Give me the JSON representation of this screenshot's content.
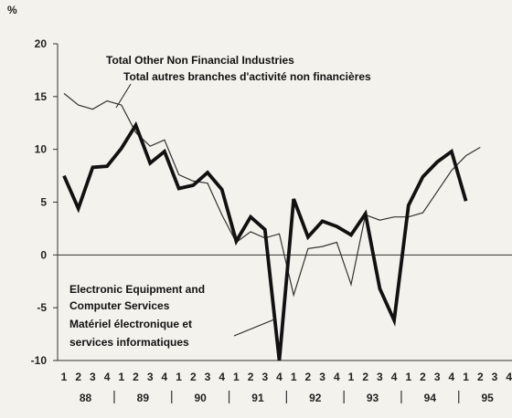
{
  "chart_data": {
    "type": "line",
    "unit_label": "%",
    "ylim": [
      -10,
      20
    ],
    "y_ticks": [
      -10,
      -5,
      0,
      5,
      10,
      15,
      20
    ],
    "quarter_labels": [
      "1",
      "2",
      "3",
      "4",
      "1",
      "2",
      "3",
      "4",
      "1",
      "2",
      "3",
      "4",
      "1",
      "2",
      "3",
      "4",
      "1",
      "2",
      "3",
      "4",
      "1",
      "2",
      "3",
      "4",
      "1",
      "2",
      "3",
      "4",
      "1",
      "2",
      "3",
      "4"
    ],
    "year_labels": [
      "88",
      "89",
      "90",
      "91",
      "92",
      "93",
      "94",
      "95"
    ],
    "series": [
      {
        "name": "Total Other Non Financial Industries",
        "name_fr": "Total autres branches d'activité non financières",
        "style": "thin",
        "color": "#333333",
        "values": [
          15.3,
          14.2,
          13.8,
          14.6,
          14.2,
          11.6,
          10.3,
          10.9,
          7.6,
          7.0,
          6.8,
          3.8,
          1.2,
          2.2,
          1.6,
          2.0,
          -3.8,
          0.6,
          0.8,
          1.2,
          -2.8,
          3.8,
          3.3,
          3.6,
          3.6,
          4.0,
          6.0,
          8.0,
          9.4,
          10.2
        ]
      },
      {
        "name": "Electronic Equipment and Computer Services",
        "name_fr": "Matériel électronique et services informatiques",
        "style": "thick",
        "color": "#111111",
        "values": [
          7.5,
          4.4,
          8.3,
          8.4,
          10.1,
          12.3,
          8.7,
          9.8,
          6.3,
          6.6,
          7.8,
          6.2,
          1.3,
          3.6,
          2.4,
          -10.0,
          5.3,
          1.7,
          3.2,
          2.7,
          1.9,
          3.9,
          -3.2,
          -6.2,
          4.7,
          7.4,
          8.8,
          9.8,
          5.1
        ]
      }
    ],
    "annotations": {
      "top": [
        "Total Other Non Financial Industries",
        "Total autres branches d'activité non financières"
      ],
      "bottom": [
        "Electronic Equipment and",
        "Computer Services",
        "Matériel électronique et",
        "services informatiques"
      ]
    }
  }
}
